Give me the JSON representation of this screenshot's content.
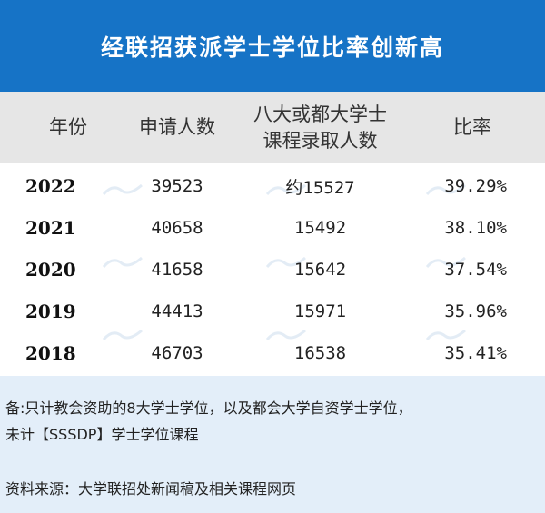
{
  "title": "经联招获派学士学位比率创新高",
  "table": {
    "headers": {
      "year": "年份",
      "applicants": "申请人数",
      "admitted_line1": "八大或都大学士",
      "admitted_line2": "课程录取人数",
      "ratio": "比率"
    },
    "rows": [
      {
        "year": "2022",
        "applicants": "39523",
        "admitted": "约15527",
        "ratio": "39.29%"
      },
      {
        "year": "2021",
        "applicants": "40658",
        "admitted": "15492",
        "ratio": "38.10%"
      },
      {
        "year": "2020",
        "applicants": "41658",
        "admitted": "15642",
        "ratio": "37.54%"
      },
      {
        "year": "2019",
        "applicants": "44413",
        "admitted": "15971",
        "ratio": "35.96%"
      },
      {
        "year": "2018",
        "applicants": "46703",
        "admitted": "16538",
        "ratio": "35.41%"
      }
    ]
  },
  "notes": {
    "line1": "备:只计教会资助的8大学士学位，以及都会大学自资学士学位，",
    "line2": "未计【SSSDP】学士学位课程",
    "source": "资料来源：大学联招处新闻稿及相关课程网页"
  },
  "colors": {
    "title_bg": "#1673c6",
    "header_bg": "#e6e6e6",
    "note_bg": "#e3eef9"
  }
}
